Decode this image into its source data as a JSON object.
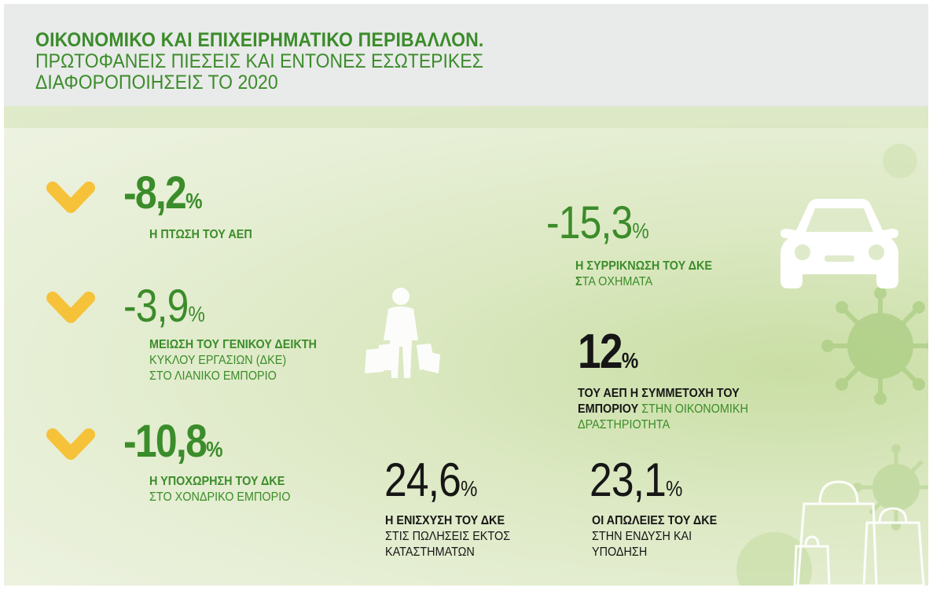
{
  "header": {
    "title_bold": "ΟΙΚΟΝΟΜΙΚΟ ΚΑΙ ΕΠΙΧΕΙΡΗΜΑΤΙΚΟ ΠΕΡΙΒΑΛΛΟΝ.",
    "title_sub": "ΠΡΩΤΟΦΑΝΕΙΣ ΠΙΕΣΕΙΣ ΚΑΙ ΕΝΤΟΝΕΣ ΕΣΩΤΕΡΙΚΕΣ\nΔΙΑΦΟΡΟΠΟΙΗΣΕΙΣ ΤΟ 2020"
  },
  "colors": {
    "accent_green": "#3b8c2a",
    "chevron_yellow": "#f6c23a",
    "dark_text": "#161616"
  },
  "stats": {
    "gdp_drop": {
      "value": "-8,2",
      "unit": "%",
      "label": "Η ΠΤΩΣΗ ΤΟΥ ΑΕΠ",
      "icon": "chevron-down-icon"
    },
    "retail_index": {
      "value": "-3,9",
      "unit": "%",
      "label_bold": "ΜΕΙΩΣΗ ΤΟΥ ΓΕΝΙΚΟΥ ΔΕΙΚΤΗ",
      "label_line2": "ΚΥΚΛΟΥ ΕΡΓΑΣΙΩΝ (ΔΚΕ)",
      "label_line3": "ΣΤΟ ΛΙΑΝΙΚΟ ΕΜΠΟΡΙΟ",
      "icon": "chevron-down-icon"
    },
    "wholesale": {
      "value": "-10,8",
      "unit": "%",
      "label_bold": "Η ΥΠΟΧΩΡΗΣΗ ΤΟΥ ΔΚΕ",
      "label_line2": "ΣΤΟ ΧΟΝΔΡΙΚΟ ΕΜΠΟΡΙΟ",
      "icon": "chevron-down-icon"
    },
    "vehicles": {
      "value": "-15,3",
      "unit": "%",
      "label_bold": "Η ΣΥΡΡΙΚΝΩΣΗ ΤΟΥ ΔΚΕ",
      "label_line2_bold": "Σ",
      "label_line2_rest": "ΤΑ ΟΧΗΜΑΤΑ",
      "icon": "car-icon"
    },
    "commerce_share": {
      "value": "12",
      "unit": "%",
      "label_line1": "ΤΟΥ ΑΕΠ Η ΣΥΜΜΕΤΟΧΗ ΤΟΥ",
      "label_line2_bold": "ΕΜΠΟΡΙΟΥ",
      "label_line2_rest": " ΣΤΗΝ ΟΙΚΟΝΟΜΙΚΗ",
      "label_line3": "ΔΡΑΣΤΗΡΙΟΤΗΤΑ"
    },
    "outside_stores": {
      "value": "24,6",
      "unit": "%",
      "label_bold": "Η ΕΝΙΣΧΥΣΗ ΤΟΥ ΔΚΕ",
      "label_line2": "ΣΤΙΣ ΠΩΛΗΣΕΙΣ ΕΚΤΟΣ",
      "label_line3": "ΚΑΤΑΣΤΗΜΑΤΩΝ"
    },
    "clothing": {
      "value": "23,1",
      "unit": "%",
      "label_bold": "ΟΙ ΑΠΩΛΕΙΕΣ ΤΟΥ ΔΚΕ",
      "label_line2": "ΣΤΗΝ ΕΝΔΥΣΗ ΚΑΙ",
      "label_line3": "ΥΠΟΔΗΣΗ"
    }
  },
  "decorations": {
    "shopper": "shopper-icon",
    "bags": "shopping-bags-icon",
    "virus": "virus-icon"
  }
}
